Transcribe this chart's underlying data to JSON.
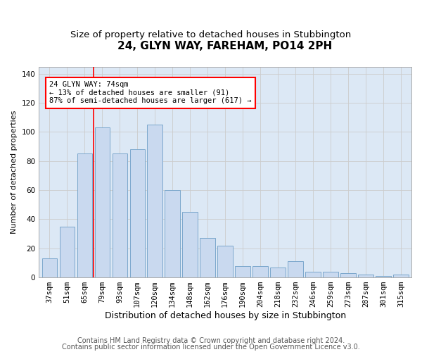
{
  "title": "24, GLYN WAY, FAREHAM, PO14 2PH",
  "subtitle": "Size of property relative to detached houses in Stubbington",
  "xlabel": "Distribution of detached houses by size in Stubbington",
  "ylabel": "Number of detached properties",
  "categories": [
    "37sqm",
    "51sqm",
    "65sqm",
    "79sqm",
    "93sqm",
    "107sqm",
    "120sqm",
    "134sqm",
    "148sqm",
    "162sqm",
    "176sqm",
    "190sqm",
    "204sqm",
    "218sqm",
    "232sqm",
    "246sqm",
    "259sqm",
    "273sqm",
    "287sqm",
    "301sqm",
    "315sqm"
  ],
  "values": [
    13,
    35,
    85,
    103,
    85,
    88,
    105,
    60,
    45,
    27,
    22,
    8,
    8,
    7,
    11,
    4,
    4,
    3,
    2,
    1,
    2
  ],
  "bar_color": "#c9d9ef",
  "bar_edge_color": "#7ba7cc",
  "red_line_x": 2.5,
  "annotation_text": "24 GLYN WAY: 74sqm\n← 13% of detached houses are smaller (91)\n87% of semi-detached houses are larger (617) →",
  "annotation_box_color": "white",
  "annotation_box_edge_color": "red",
  "red_line_color": "red",
  "grid_color": "#cccccc",
  "background_color": "#dce8f5",
  "footer_line1": "Contains HM Land Registry data © Crown copyright and database right 2024.",
  "footer_line2": "Contains public sector information licensed under the Open Government Licence v3.0.",
  "ylim": [
    0,
    145
  ],
  "yticks": [
    0,
    20,
    40,
    60,
    80,
    100,
    120,
    140
  ],
  "title_fontsize": 11,
  "subtitle_fontsize": 9.5,
  "xlabel_fontsize": 9,
  "ylabel_fontsize": 8,
  "tick_fontsize": 7.5,
  "footer_fontsize": 7
}
